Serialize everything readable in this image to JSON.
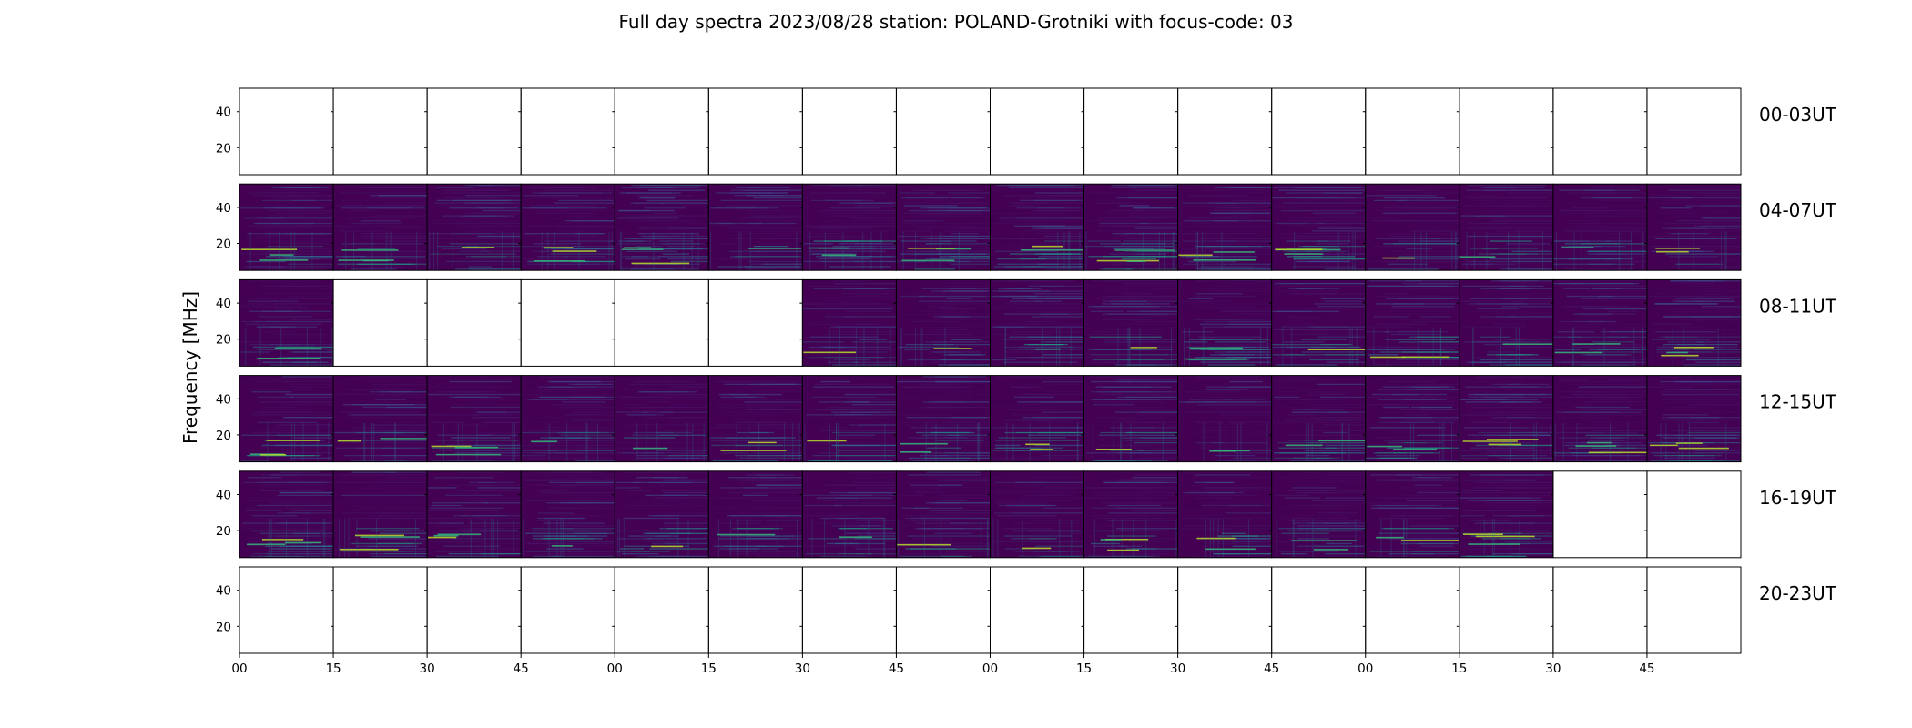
{
  "chart_data": {
    "type": "heatmap",
    "title": "Full day spectra 2023/08/28 station: POLAND-Grotniki with focus-code: 03",
    "ylabel": "Frequency [MHz]",
    "xlabel": "",
    "yticks": [
      20,
      40
    ],
    "ylim": [
      5,
      53
    ],
    "xticks": [
      "00",
      "15",
      "30",
      "45",
      "00",
      "15",
      "30",
      "45",
      "00",
      "15",
      "30",
      "45",
      "00",
      "15",
      "30",
      "45"
    ],
    "colormap": "viridis",
    "colors": {
      "background": "#440154",
      "low": "#46085c",
      "mid": "#3b528b",
      "high": "#21918c",
      "peak": "#fde725",
      "axis": "#000000"
    },
    "rows": [
      {
        "label": "00-03UT",
        "has_data": [
          false,
          false,
          false,
          false,
          false,
          false,
          false,
          false,
          false,
          false,
          false,
          false,
          false,
          false,
          false,
          false
        ]
      },
      {
        "label": "04-07UT",
        "has_data": [
          true,
          true,
          true,
          true,
          true,
          true,
          true,
          true,
          true,
          true,
          true,
          true,
          true,
          true,
          true,
          true
        ]
      },
      {
        "label": "08-11UT",
        "has_data": [
          true,
          false,
          false,
          false,
          false,
          false,
          true,
          true,
          true,
          true,
          true,
          true,
          true,
          true,
          true,
          true
        ]
      },
      {
        "label": "12-15UT",
        "has_data": [
          true,
          true,
          true,
          true,
          true,
          true,
          true,
          true,
          true,
          true,
          true,
          true,
          true,
          true,
          true,
          true
        ]
      },
      {
        "label": "16-19UT",
        "has_data": [
          true,
          true,
          true,
          true,
          true,
          true,
          true,
          true,
          true,
          true,
          true,
          true,
          true,
          true,
          false,
          false
        ]
      },
      {
        "label": "20-23UT",
        "has_data": [
          false,
          false,
          false,
          false,
          false,
          false,
          false,
          false,
          false,
          false,
          false,
          false,
          false,
          false,
          false,
          false
        ]
      }
    ]
  }
}
